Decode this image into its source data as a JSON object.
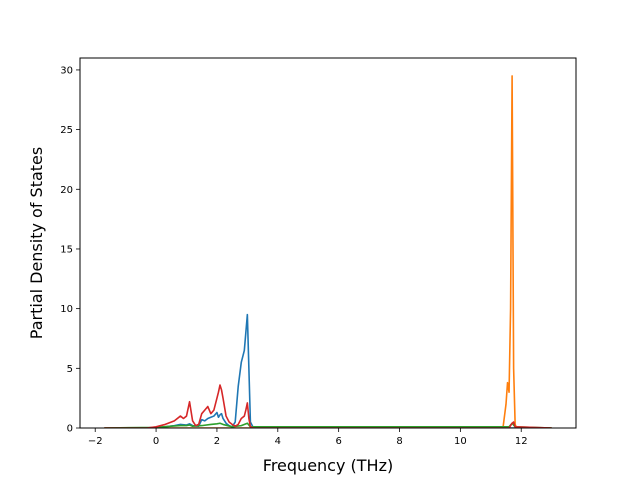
{
  "chart_data": {
    "type": "line",
    "title": "",
    "xlabel": "Frequency (THz)",
    "ylabel": "Partial Density of States",
    "xlim": [
      -2.5,
      13.8
    ],
    "ylim": [
      0,
      31.0
    ],
    "xticks": [
      -2,
      0,
      2,
      4,
      6,
      8,
      10,
      12
    ],
    "yticks": [
      0,
      5,
      10,
      15,
      20,
      25,
      30
    ],
    "xtick_labels": [
      "−2",
      "0",
      "2",
      "4",
      "6",
      "8",
      "10",
      "12"
    ],
    "ytick_labels": [
      "0",
      "5",
      "10",
      "15",
      "20",
      "25",
      "30"
    ],
    "grid": false,
    "legend": "none",
    "series": [
      {
        "color": "#1f77b4",
        "x": [
          -1.7,
          -0.2,
          0.0,
          0.3,
          0.6,
          0.8,
          1.0,
          1.1,
          1.2,
          1.4,
          1.5,
          1.6,
          1.7,
          1.8,
          1.9,
          2.0,
          2.05,
          2.1,
          2.15,
          2.2,
          2.3,
          2.4,
          2.5,
          2.6,
          2.7,
          2.8,
          2.85,
          2.9,
          2.95,
          3.0,
          3.05,
          3.1,
          3.2,
          3.5,
          13.0
        ],
        "y": [
          0,
          0,
          0.05,
          0.1,
          0.2,
          0.3,
          0.25,
          0.35,
          0.2,
          0.15,
          0.7,
          0.6,
          0.8,
          0.9,
          1.0,
          1.3,
          0.9,
          1.1,
          1.2,
          0.8,
          0.4,
          0.2,
          0.1,
          0.5,
          3.5,
          5.5,
          6.0,
          6.5,
          8.0,
          9.5,
          5.0,
          0.5,
          0,
          0,
          0
        ]
      },
      {
        "color": "#ff7f0e",
        "x": [
          -1.7,
          11.4,
          11.5,
          11.55,
          11.6,
          11.65,
          11.7,
          11.72,
          11.75,
          11.8,
          11.85,
          11.9,
          13.0
        ],
        "y": [
          0,
          0,
          2.0,
          3.8,
          3.0,
          10.0,
          29.5,
          20.0,
          5.0,
          0.3,
          0,
          0,
          0
        ]
      },
      {
        "color": "#2ca02c",
        "x": [
          -1.7,
          0.0,
          0.5,
          0.8,
          1.0,
          1.1,
          1.2,
          1.5,
          1.8,
          2.0,
          2.1,
          2.2,
          2.5,
          2.8,
          3.0,
          3.1,
          11.6,
          11.7,
          11.8,
          13.0
        ],
        "y": [
          0,
          0.05,
          0.15,
          0.2,
          0.2,
          0.25,
          0.15,
          0.2,
          0.3,
          0.35,
          0.4,
          0.3,
          0.1,
          0.2,
          0.4,
          0.1,
          0.1,
          0.4,
          0.1,
          0
        ]
      },
      {
        "color": "#d62728",
        "x": [
          -1.7,
          -0.3,
          0.0,
          0.3,
          0.6,
          0.8,
          0.9,
          1.0,
          1.05,
          1.1,
          1.2,
          1.3,
          1.4,
          1.5,
          1.6,
          1.7,
          1.8,
          1.9,
          2.0,
          2.05,
          2.1,
          2.15,
          2.2,
          2.3,
          2.4,
          2.5,
          2.6,
          2.7,
          2.8,
          2.9,
          2.95,
          3.0,
          3.05,
          3.1,
          3.2,
          11.6,
          11.7,
          11.75,
          11.8,
          13.0
        ],
        "y": [
          0,
          0,
          0.1,
          0.3,
          0.6,
          1.0,
          0.8,
          1.0,
          1.6,
          2.2,
          0.6,
          0.2,
          0.3,
          1.2,
          1.5,
          1.8,
          1.2,
          1.5,
          2.5,
          3.0,
          3.6,
          3.2,
          2.5,
          1.0,
          0.5,
          0.3,
          0.15,
          0.3,
          0.8,
          1.0,
          1.5,
          2.1,
          0.8,
          0.1,
          0,
          0,
          0.4,
          0.5,
          0.1,
          0
        ]
      }
    ]
  }
}
